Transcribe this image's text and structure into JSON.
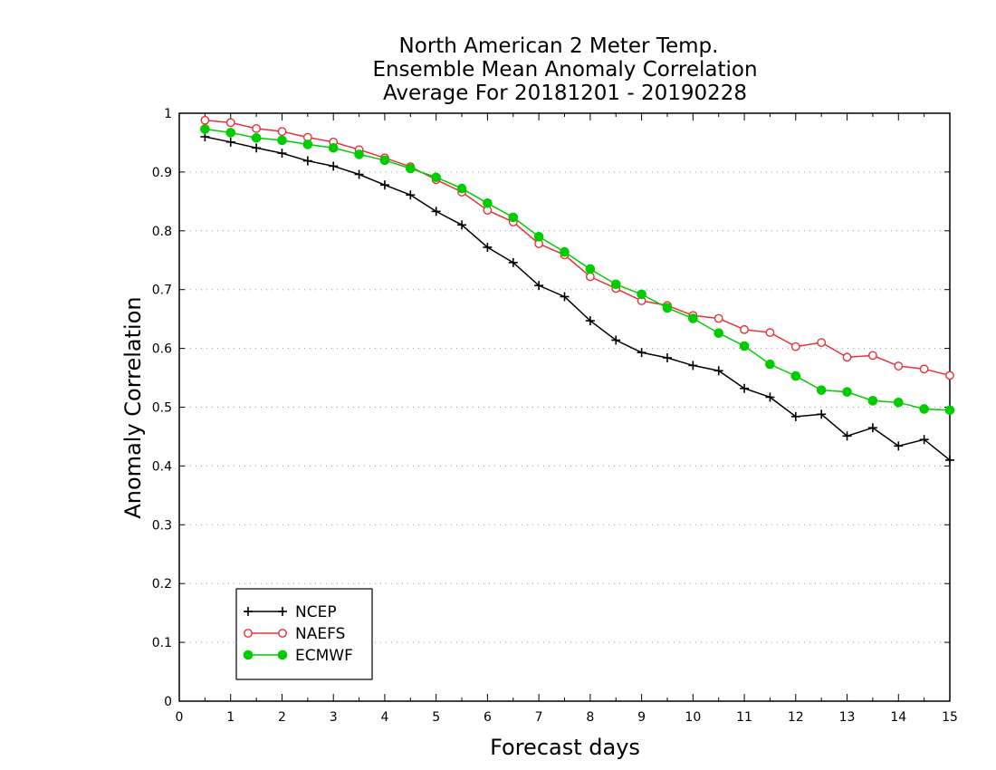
{
  "chart_data": {
    "type": "line",
    "title_lines": [
      "North American 2 Meter Temp.",
      "Ensemble Mean Anomaly Correlation",
      "Average For 20181201 - 20190228"
    ],
    "xlabel": "Forecast days",
    "ylabel": "Anomaly Correlation",
    "xlim": [
      0,
      15
    ],
    "ylim": [
      0,
      1
    ],
    "xticks": [
      "0",
      "1",
      "2",
      "3",
      "4",
      "5",
      "6",
      "7",
      "8",
      "9",
      "10",
      "11",
      "12",
      "13",
      "14",
      "15"
    ],
    "yticks": [
      "0",
      "0.1",
      "0.2",
      "0.3",
      "0.4",
      "0.5",
      "0.6",
      "0.7",
      "0.8",
      "0.9",
      "1"
    ],
    "grid": "y-dotted",
    "legend_position": "bottom-left",
    "x": [
      0.5,
      1,
      1.5,
      2,
      2.5,
      3,
      3.5,
      4,
      4.5,
      5,
      5.5,
      6,
      6.5,
      7,
      7.5,
      8,
      8.5,
      9,
      9.5,
      10,
      10.5,
      11,
      11.5,
      12,
      12.5,
      13,
      13.5,
      14,
      14.5,
      15
    ],
    "series": [
      {
        "name": "NCEP",
        "color": "#000000",
        "marker": "plus",
        "values": [
          0.96,
          0.951,
          0.941,
          0.932,
          0.919,
          0.91,
          0.896,
          0.878,
          0.861,
          0.833,
          0.81,
          0.772,
          0.746,
          0.707,
          0.688,
          0.647,
          0.614,
          0.593,
          0.584,
          0.571,
          0.562,
          0.532,
          0.517,
          0.484,
          0.488,
          0.451,
          0.465,
          0.434,
          0.445,
          0.41
        ]
      },
      {
        "name": "NAEFS",
        "color": "#e8303a",
        "marker": "open-circle",
        "values": [
          0.988,
          0.984,
          0.974,
          0.969,
          0.959,
          0.951,
          0.938,
          0.924,
          0.909,
          0.887,
          0.866,
          0.835,
          0.815,
          0.778,
          0.759,
          0.722,
          0.702,
          0.681,
          0.673,
          0.656,
          0.651,
          0.632,
          0.627,
          0.603,
          0.61,
          0.585,
          0.588,
          0.57,
          0.565,
          0.554
        ]
      },
      {
        "name": "ECMWF",
        "color": "#00cc00",
        "marker": "filled-circle",
        "values": [
          0.973,
          0.967,
          0.958,
          0.954,
          0.947,
          0.941,
          0.93,
          0.92,
          0.906,
          0.891,
          0.872,
          0.847,
          0.823,
          0.79,
          0.764,
          0.735,
          0.709,
          0.692,
          0.669,
          0.651,
          0.626,
          0.604,
          0.573,
          0.553,
          0.529,
          0.526,
          0.511,
          0.508,
          0.497,
          0.495
        ]
      }
    ]
  }
}
